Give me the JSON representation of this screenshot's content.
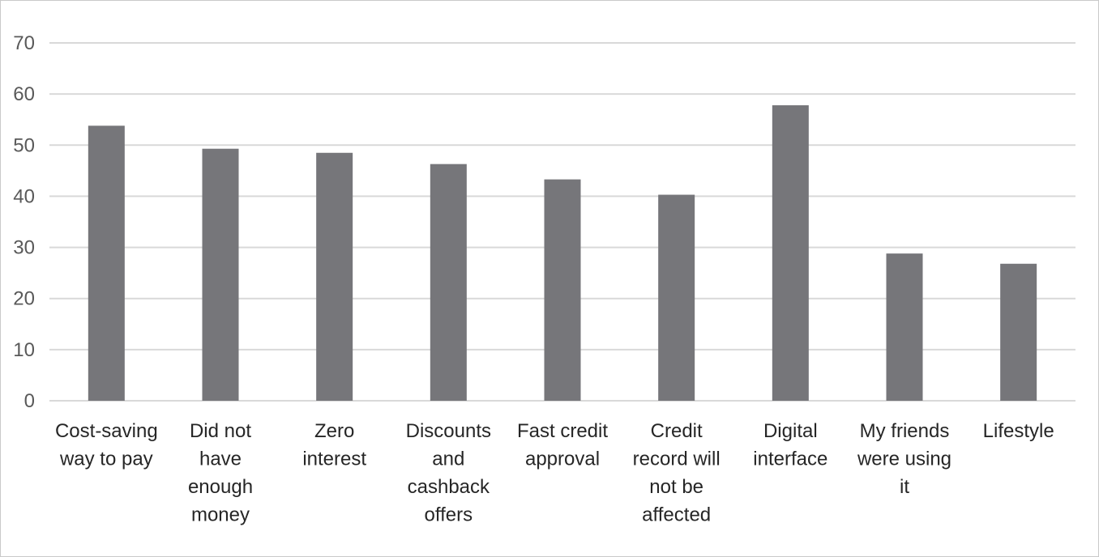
{
  "chart_data": {
    "type": "bar",
    "title": "",
    "xlabel": "",
    "ylabel": "",
    "ylim": [
      0,
      70
    ],
    "yticks": [
      0,
      10,
      20,
      30,
      40,
      50,
      60,
      70
    ],
    "grid": true,
    "legend": "none",
    "bar_color": "#76767a",
    "grid_color": "#d9d9d9",
    "categories": [
      [
        "Cost-saving",
        "way to pay"
      ],
      [
        "Did not",
        "have",
        "enough",
        "money"
      ],
      [
        "Zero",
        "interest"
      ],
      [
        "Discounts",
        "and",
        "cashback",
        "offers"
      ],
      [
        "Fast credit",
        "approval"
      ],
      [
        "Credit",
        "record will",
        "not be",
        "affected"
      ],
      [
        "Digital",
        "interface"
      ],
      [
        "My friends",
        "were using",
        "it"
      ],
      [
        "Lifestyle"
      ]
    ],
    "values": [
      53.8,
      49.3,
      48.5,
      46.3,
      43.3,
      40.3,
      57.8,
      28.8,
      26.8
    ]
  }
}
